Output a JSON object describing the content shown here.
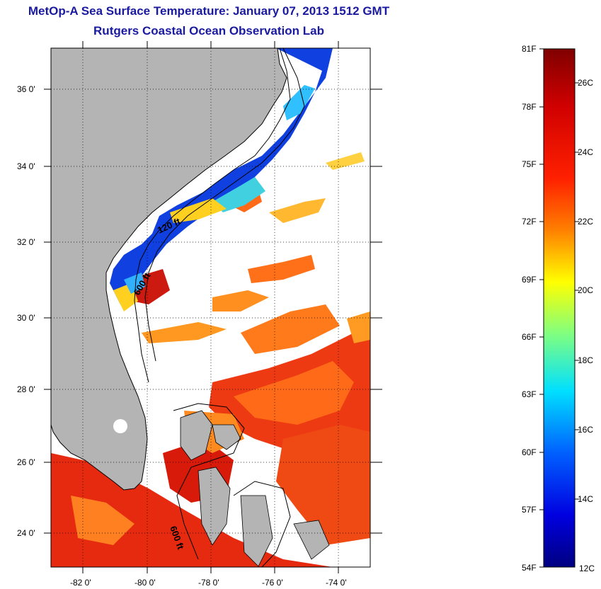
{
  "title": "MetOp-A Sea Surface Temperature:  January 07, 2013 1512 GMT",
  "subtitle": "Rutgers Coastal Ocean Observation Lab",
  "map": {
    "lat_ticks": [
      "36 0'",
      "34 0'",
      "32 0'",
      "30 0'",
      "28 0'",
      "26 0'",
      "24 0'"
    ],
    "lon_ticks": [
      "-82 0'",
      "-80 0'",
      "-78 0'",
      "-76 0'",
      "-74 0'"
    ],
    "isobaths": [
      "120 ft",
      "600 ft",
      "600 ft"
    ],
    "land_color": "#b4b4b4"
  },
  "colorbar": {
    "fahrenheit_labels": [
      "81F",
      "78F",
      "75F",
      "72F",
      "69F",
      "66F",
      "63F",
      "60F",
      "57F",
      "54F"
    ],
    "celsius_labels": [
      "26C",
      "24C",
      "22C",
      "20C",
      "18C",
      "16C",
      "14C",
      "12C"
    ],
    "colors": [
      "#800000",
      "#ff0000",
      "#ff8000",
      "#ffff00",
      "#80ff80",
      "#00ffff",
      "#0080ff",
      "#0000ff",
      "#000080"
    ]
  }
}
